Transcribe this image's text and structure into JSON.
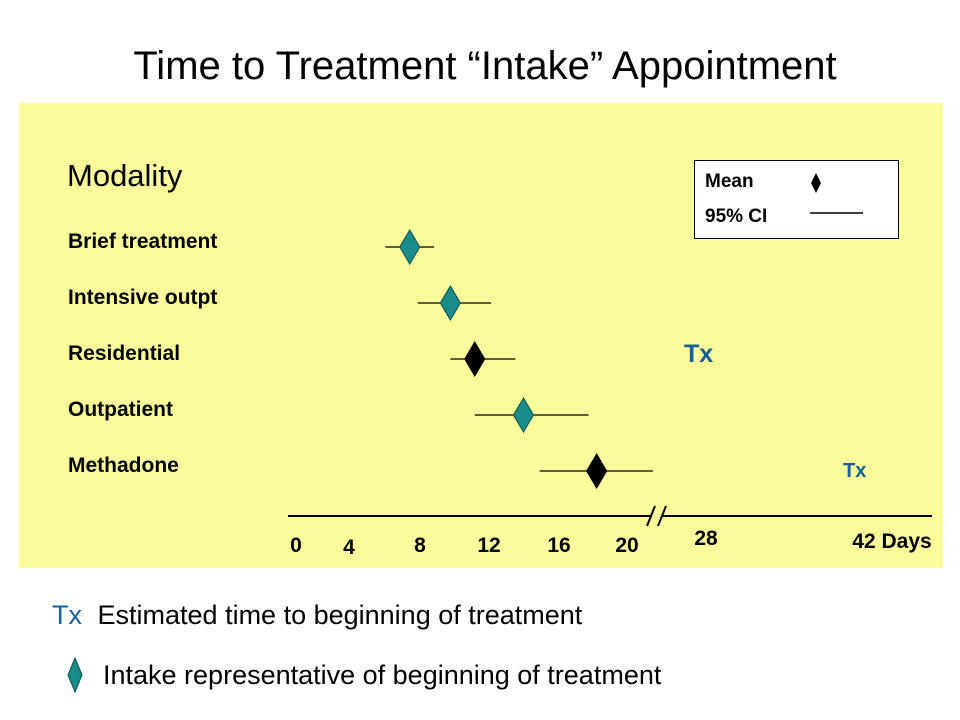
{
  "chart_data": {
    "type": "forest",
    "title": "Time to Treatment “Intake” Appointment",
    "row_heading": "Modality",
    "x_unit": "Days",
    "x_ticks": [
      "0",
      "4",
      "8",
      "12",
      "16",
      "20",
      "28",
      "42 Days"
    ],
    "axis_break": "between 20 and 28",
    "rows": [
      {
        "label": "Brief treatment",
        "mean": 7,
        "ci": [
          5.5,
          8.5
        ],
        "marker_color": "#1a8c8c"
      },
      {
        "label": "Intensive outpt",
        "mean": 9.5,
        "ci": [
          7.5,
          12
        ],
        "marker_color": "#1a8c8c"
      },
      {
        "label": "Residential",
        "mean": 11,
        "ci": [
          9.5,
          13.5
        ],
        "marker_color": "#000000"
      },
      {
        "label": "Outpatient",
        "mean": 14,
        "ci": [
          11,
          18
        ],
        "marker_color": "#1a8c8c"
      },
      {
        "label": "Methadone",
        "mean": 18.5,
        "ci": [
          15,
          23
        ],
        "marker_color": "#000000"
      }
    ],
    "tx_annotations": [
      "Tx",
      "Tx"
    ],
    "legend": {
      "mean_label": "Mean",
      "ci_label": "95% CI",
      "placement": "top-right"
    }
  },
  "footer": {
    "tx_symbol": "Tx",
    "tx_text": "Estimated time to beginning of treatment",
    "diamond_text": "Intake representative of beginning of treatment"
  },
  "colors": {
    "panel": "#fbfb9b",
    "teal": "#1a8c8c",
    "tx_blue": "#17609a"
  }
}
